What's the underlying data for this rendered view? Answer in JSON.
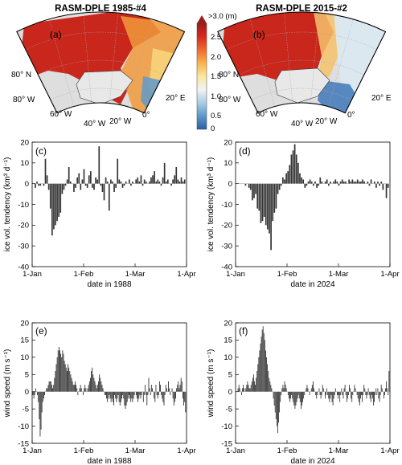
{
  "maps": {
    "left_title": "RASM-DPLE 1985-#4",
    "right_title": "RASM-DPLE 2015-#2",
    "left_panel": "(a)",
    "right_panel": "(b)",
    "lat_label": "80° N",
    "lon_labels": [
      "80° W",
      "60° W",
      "40° W",
      "20° W",
      "0°",
      "20° E"
    ],
    "colorbar": {
      "top_label": ">3.0 (m)",
      "ticks": [
        "2.5",
        "2.0",
        "1.5",
        "1.0",
        "0.5",
        "0"
      ],
      "colors": [
        "#9e1b1b",
        "#d8281f",
        "#f06a2c",
        "#f9b44c",
        "#fbe79d",
        "#f2f2f2",
        "#a9cde5",
        "#5d97c9",
        "#2b5ea7"
      ]
    }
  },
  "chart_data": [
    {
      "type": "bar",
      "panel": "(c)",
      "xlabel": "date in 1988",
      "ylabel": "ice vol. tendency (km³ d⁻¹)",
      "ylim": [
        -40,
        20
      ],
      "yticks": [
        20,
        10,
        0,
        -10,
        -20,
        -30,
        -40
      ],
      "xticks": [
        "1-Jan",
        "1-Feb",
        "1-Mar",
        "1-Apr"
      ],
      "x_start": "1-Jan",
      "x_end": "1-Apr",
      "values": [
        0,
        -2,
        1,
        -1,
        -1,
        0,
        -1,
        12,
        4,
        -3,
        -12,
        -25,
        -22,
        -20,
        -18,
        -16,
        -14,
        -5,
        -3,
        -1,
        2,
        8,
        1,
        0,
        -4,
        -2,
        3,
        5,
        -3,
        2,
        7,
        -1,
        -2,
        4,
        6,
        -2,
        -3,
        3,
        2,
        18,
        -1,
        -4,
        -8,
        3,
        1,
        -13,
        2,
        1,
        -4,
        -2,
        12,
        2,
        1,
        -2,
        -1,
        1,
        0,
        2,
        -1,
        1,
        0,
        2,
        3,
        1,
        4,
        -1,
        2,
        1,
        0,
        1,
        3,
        4,
        6,
        1,
        2,
        1,
        -1,
        3,
        10,
        1,
        2,
        0,
        -1,
        2,
        4,
        8,
        2,
        1,
        3,
        1,
        2
      ]
    },
    {
      "type": "bar",
      "panel": "(d)",
      "xlabel": "date in 2024",
      "ylabel": "ice vol. tendency (km³ d⁻¹)",
      "ylim": [
        -40,
        20
      ],
      "yticks": [
        20,
        10,
        0,
        -10,
        -20,
        -30,
        -40
      ],
      "xticks": [
        "1-Jan",
        "1-Feb",
        "1-Mar",
        "1-Apr"
      ],
      "x_start": "1-Jan",
      "x_end": "1-Apr",
      "values": [
        0,
        0,
        0,
        0,
        0,
        -1,
        0,
        -2,
        -3,
        -8,
        -7,
        -5,
        -12,
        -13,
        -19,
        -18,
        -16,
        -20,
        -22,
        -24,
        -32,
        -18,
        -14,
        -12,
        -5,
        -3,
        -1,
        3,
        2,
        5,
        6,
        9,
        14,
        16,
        19,
        14,
        10,
        5,
        3,
        2,
        -2,
        -1,
        1,
        2,
        1,
        -1,
        1,
        -2,
        -1,
        3,
        1,
        0,
        1,
        2,
        -1,
        1,
        0,
        1,
        2,
        1,
        -1,
        1,
        2,
        1,
        1,
        0,
        2,
        1,
        2,
        1,
        1,
        2,
        1,
        1,
        2,
        1,
        0,
        1,
        -1,
        2,
        0,
        1,
        -2,
        1,
        -1,
        1,
        -3,
        0,
        -7,
        -2
      ]
    },
    {
      "type": "bar",
      "panel": "(e)",
      "xlabel": "date in 1988",
      "ylabel": "wind speed (m s⁻¹)",
      "ylim": [
        -15,
        20
      ],
      "yticks": [
        20,
        15,
        10,
        5,
        0,
        -5,
        -10,
        -15
      ],
      "xticks": [
        "1-Jan",
        "1-Feb",
        "1-Mar",
        "1-Apr"
      ],
      "x_start": "1-Jan",
      "x_end": "1-Apr",
      "values": [
        -1,
        -2,
        -1,
        1,
        0,
        -1,
        -3,
        -8,
        -13,
        -11,
        -6,
        -3,
        -2,
        -1,
        0,
        1,
        1,
        2,
        3,
        3,
        3,
        2,
        1,
        2,
        4,
        6,
        8,
        10,
        12,
        13,
        12,
        11,
        10,
        12,
        11,
        9,
        8,
        7,
        6,
        8,
        7,
        6,
        5,
        4,
        3,
        2,
        2,
        3,
        2,
        1,
        -1,
        0,
        1,
        2,
        1,
        0,
        -1,
        1,
        2,
        1,
        0,
        1,
        2,
        3,
        4,
        6,
        7,
        5,
        4,
        3,
        2,
        1,
        2,
        3,
        5,
        4,
        3,
        2,
        1,
        0,
        -1,
        -1,
        -2,
        -3,
        -2,
        -1,
        -2,
        -3,
        -2,
        -3,
        -4,
        -1,
        -2,
        -3,
        -2,
        -1,
        -3,
        -4,
        -3,
        -2,
        -1,
        -2,
        -4,
        -5,
        -4,
        -3,
        -2,
        -1,
        -2,
        -3,
        -2,
        -3,
        -2,
        -1,
        0,
        -1,
        -2,
        -3,
        -2,
        -1,
        -2,
        -1,
        0,
        -3,
        -1,
        2,
        -1,
        -4,
        -1,
        4,
        1,
        -1,
        2,
        1,
        0,
        -2,
        -3,
        2,
        -1,
        -2,
        -1,
        3,
        2,
        -1,
        -2,
        -3,
        -4,
        -1,
        2,
        1,
        0,
        3,
        1,
        -1,
        0,
        1,
        -2,
        -4,
        -3,
        -2,
        1,
        2,
        3,
        1,
        2,
        4,
        3,
        -2,
        -4,
        -3,
        -6
      ]
    },
    {
      "type": "bar",
      "panel": "(f)",
      "xlabel": "date in 2024",
      "ylabel": "wind speed (m s⁻¹)",
      "ylim": [
        -15,
        20
      ],
      "yticks": [
        20,
        15,
        10,
        5,
        0,
        -5,
        -10,
        -15
      ],
      "xticks": [
        "1-Jan",
        "1-Feb",
        "1-Mar",
        "1-Apr"
      ],
      "x_start": "1-Jan",
      "x_end": "1-Apr",
      "values": [
        0,
        0,
        1,
        2,
        1,
        0,
        -1,
        1,
        2,
        1,
        0,
        1,
        2,
        3,
        2,
        1,
        1,
        2,
        3,
        4,
        5,
        3,
        2,
        4,
        6,
        8,
        10,
        12,
        14,
        16,
        18,
        19,
        17,
        15,
        12,
        10,
        8,
        6,
        4,
        3,
        2,
        1,
        0,
        -2,
        -4,
        -6,
        -8,
        -10,
        -12,
        -9,
        -6,
        -3,
        -1,
        1,
        2,
        1,
        3,
        2,
        1,
        0,
        -1,
        -2,
        -3,
        -2,
        -1,
        -2,
        -3,
        -4,
        -5,
        -4,
        -3,
        -2,
        -1,
        -2,
        -3,
        -5,
        -4,
        -3,
        -2,
        -1,
        0,
        1,
        2,
        1,
        0,
        -1,
        0,
        1,
        2,
        3,
        1,
        0,
        -1,
        -2,
        -1,
        0,
        1,
        -1,
        -2,
        -1,
        2,
        1,
        0,
        -2,
        -1,
        1,
        -1,
        -2,
        -3,
        -2,
        -1,
        -3,
        -4,
        -2,
        -1,
        1,
        0,
        -1,
        -2,
        -1,
        -3,
        -1,
        1,
        -1,
        -2,
        1,
        2,
        -1,
        -3,
        -2,
        -1,
        2,
        1,
        -2,
        -3,
        -1,
        0,
        2,
        1,
        0,
        -1,
        -2,
        -3,
        -4,
        -2,
        -1,
        -3,
        -1,
        2,
        1,
        -1,
        -2,
        -1,
        1,
        -1,
        -2,
        -3,
        -1,
        -2,
        -4,
        -3,
        -1,
        1,
        -1,
        1,
        -2,
        -3,
        -1,
        2,
        1,
        0,
        -2,
        -1,
        1,
        3,
        1,
        -1,
        6
      ]
    }
  ]
}
